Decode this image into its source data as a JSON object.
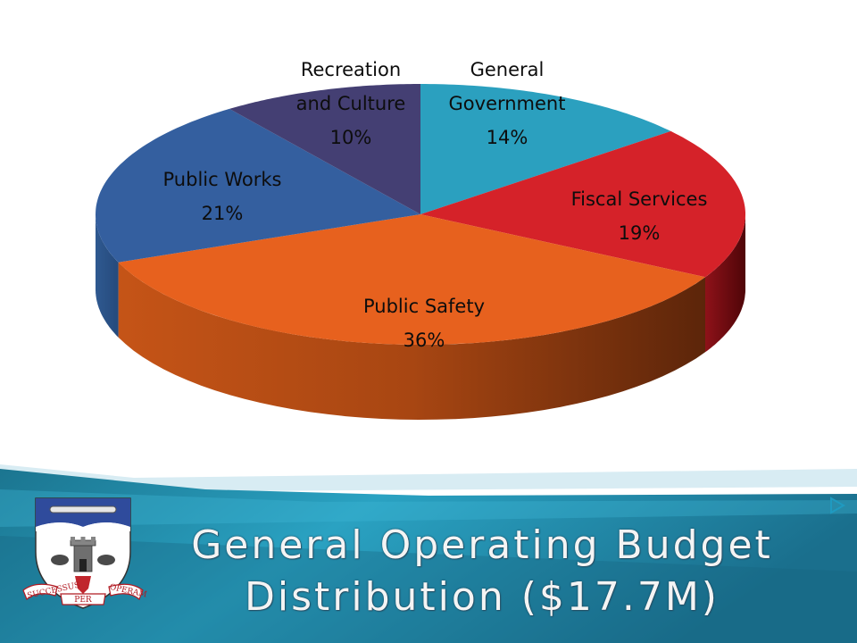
{
  "title_line1": "General Operating Budget",
  "title_line2": "Distribution ($17.7M)",
  "crest_motto": [
    "SUCCESSUS",
    "PER",
    "OPERAM"
  ],
  "chart_data": {
    "type": "pie",
    "title": "General Operating Budget Distribution ($17.7M)",
    "slices": [
      {
        "label": [
          "General",
          "Government"
        ],
        "value": 14,
        "value_label": "14%",
        "color": "#2ba0bf"
      },
      {
        "label": [
          "Fiscal Services"
        ],
        "value": 19,
        "value_label": "19%",
        "color": "#d52229"
      },
      {
        "label": [
          "Public Safety"
        ],
        "value": 36,
        "value_label": "36%",
        "color": "#e7611e"
      },
      {
        "label": [
          "Public Works"
        ],
        "value": 21,
        "value_label": "21%",
        "color": "#345f9f"
      },
      {
        "label": [
          "Recreation",
          "and Culture"
        ],
        "value": 10,
        "value_label": "10%",
        "color": "#443f73"
      }
    ],
    "legend": "none"
  }
}
